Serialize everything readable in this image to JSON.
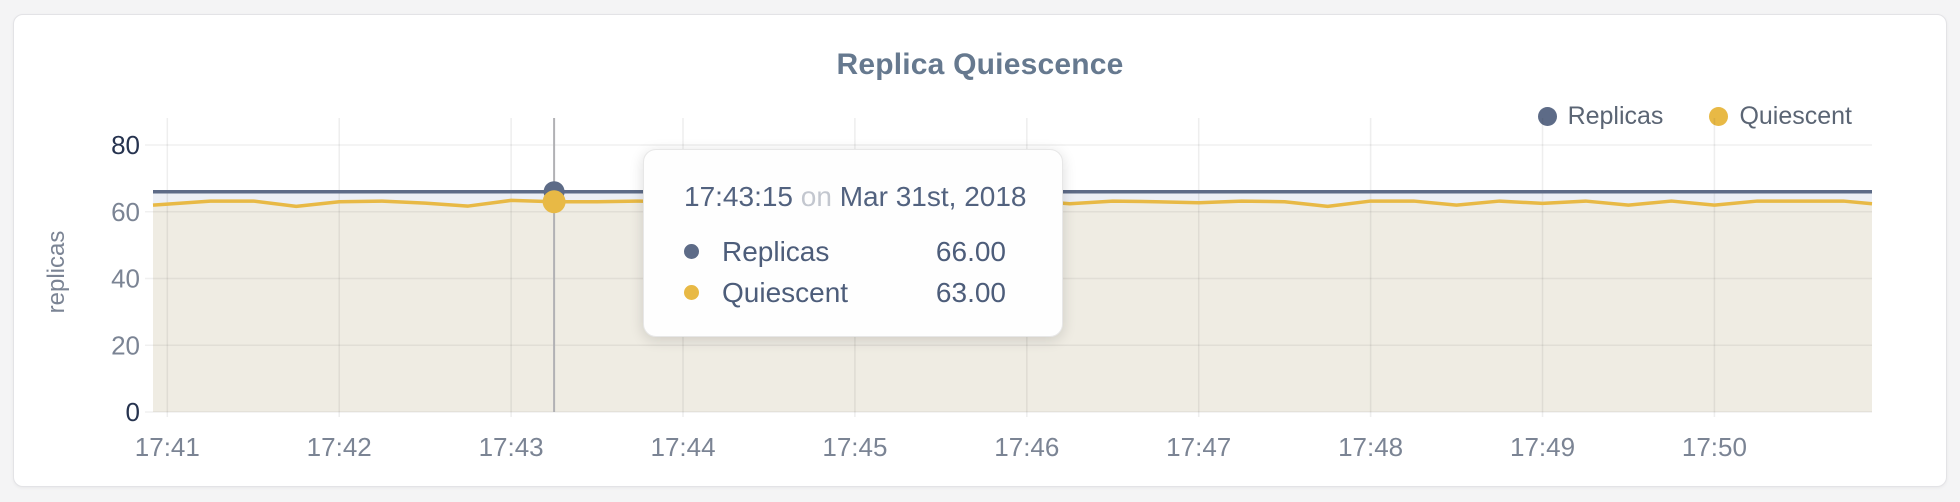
{
  "tooltip": {
    "time": "17:43:15",
    "conjunction": "on",
    "date": "Mar 31st, 2018",
    "rows": [
      {
        "label": "Replicas",
        "value": "66.00",
        "color": "#5d6b87"
      },
      {
        "label": "Quiescent",
        "value": "63.00",
        "color": "#e8b945"
      }
    ]
  },
  "chart_data": {
    "type": "line",
    "title": "Replica Quiescence",
    "xlabel": "",
    "ylabel": "replicas",
    "ylim": [
      0,
      88
    ],
    "yticks": [
      0,
      20,
      40,
      60,
      80
    ],
    "xticks": [
      "17:41",
      "17:42",
      "17:43",
      "17:44",
      "17:45",
      "17:46",
      "17:47",
      "17:48",
      "17:49",
      "17:50"
    ],
    "xlim": [
      "17:40:55",
      "17:50:55"
    ],
    "grid": true,
    "legend_position": "top-right",
    "hover": {
      "time": "17:43:15",
      "index": 10,
      "crosshair_color": "#b1b1b4"
    },
    "title_color": "#66798f",
    "axis_tick_color": "#7b8494",
    "axis_tick_minmax_color": "#26334f",
    "x": [
      "17:40:55",
      "17:41:00",
      "17:41:15",
      "17:41:30",
      "17:41:45",
      "17:42:00",
      "17:42:15",
      "17:42:30",
      "17:42:45",
      "17:43:00",
      "17:43:15",
      "17:43:30",
      "17:43:45",
      "17:44:00",
      "17:44:15",
      "17:44:30",
      "17:44:45",
      "17:45:00",
      "17:45:15",
      "17:45:30",
      "17:45:45",
      "17:46:00",
      "17:46:15",
      "17:46:30",
      "17:46:45",
      "17:47:00",
      "17:47:15",
      "17:47:30",
      "17:47:45",
      "17:48:00",
      "17:48:15",
      "17:48:30",
      "17:48:45",
      "17:49:00",
      "17:49:15",
      "17:49:30",
      "17:49:45",
      "17:50:00",
      "17:50:15",
      "17:50:30",
      "17:50:45",
      "17:50:55"
    ],
    "series": [
      {
        "name": "Replicas",
        "color": "#5d6b87",
        "fill": "#eceff5",
        "values": [
          66,
          66,
          66,
          66,
          66,
          66,
          66,
          66,
          66,
          66,
          66,
          66,
          66,
          66,
          66,
          66,
          66,
          66,
          66,
          66,
          66,
          66,
          66,
          66,
          66,
          66,
          66,
          66,
          66,
          66,
          66,
          66,
          66,
          66,
          66,
          66,
          66,
          66,
          66,
          66,
          66,
          66
        ]
      },
      {
        "name": "Quiescent",
        "color": "#e8b945",
        "fill": "#efece3",
        "values": [
          62.0,
          62.3,
          63.2,
          63.2,
          61.6,
          63.0,
          63.2,
          62.6,
          61.7,
          63.4,
          63.0,
          63.0,
          63.2,
          62.8,
          63.0,
          63.2,
          62.8,
          63.0,
          63.2,
          62.9,
          63.1,
          63.4,
          62.4,
          63.2,
          63.0,
          62.7,
          63.2,
          63.0,
          61.6,
          63.2,
          63.2,
          62.0,
          63.2,
          62.5,
          63.2,
          62.0,
          63.2,
          62.0,
          63.2,
          63.2,
          63.2,
          62.4
        ]
      }
    ]
  }
}
